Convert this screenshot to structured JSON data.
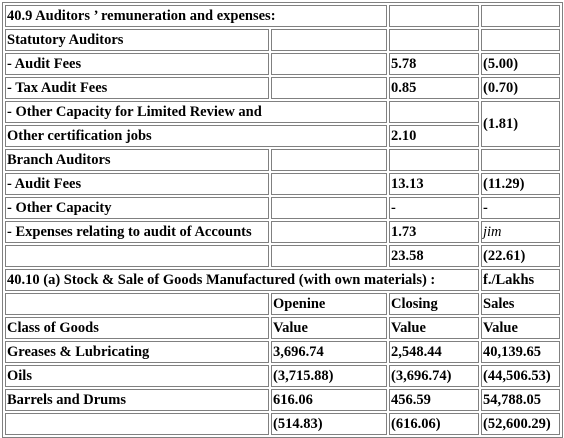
{
  "title": "40.9 Auditors ’ remuneration and expenses:",
  "auditors": [
    {
      "label": "Statutory Auditors",
      "current": "",
      "previous": ""
    },
    {
      "label": "- Audit Fees",
      "current": "5.78",
      "previous": "(5.00)"
    },
    {
      "label": "- Tax Audit Fees",
      "current": "0.85",
      "previous": "(0.70)"
    },
    {
      "label": "- Other Capacity for Limited Review and",
      "label2": "Other certification jobs",
      "current": "2.10",
      "previous": "(1.81)"
    },
    {
      "label": "Branch Auditors",
      "current": "",
      "previous": ""
    },
    {
      "label": "- Audit Fees",
      "current": "13.13",
      "previous": "(11.29)"
    },
    {
      "label": "- Other Capacity",
      "current": "-",
      "previous": "-"
    },
    {
      "label": "- Expenses relating to audit of Accounts",
      "current": "1.73",
      "previous": "jim"
    }
  ],
  "auditors_total": {
    "current": "23.58",
    "previous": "(22.61)"
  },
  "stock_title": "40.10 (a) Stock & Sale of Goods Manufactured (with own materials) :",
  "stock_unit": "f./Lakhs",
  "stock_headers": {
    "opening": "Openine",
    "closing": "Closing",
    "sales": "Sales"
  },
  "stock_subheaders": {
    "class": "Class of Goods",
    "opening": "Value",
    "closing": "Value",
    "sales": "Value"
  },
  "stock_rows": [
    {
      "class": "Greases & Lubricating",
      "opening": "3,696.74",
      "closing": "2,548.44",
      "sales": "40,139.65"
    },
    {
      "class": "Oils",
      "opening": "(3,715.88)",
      "closing": "(3,696.74)",
      "sales": "(44,506.53)"
    },
    {
      "class": "Barrels and Drums",
      "opening": "616.06",
      "closing": "456.59",
      "sales": "54,788.05"
    },
    {
      "class": "",
      "opening": "(514.83)",
      "closing": "(616.06)",
      "sales": "(52,600.29)"
    }
  ]
}
